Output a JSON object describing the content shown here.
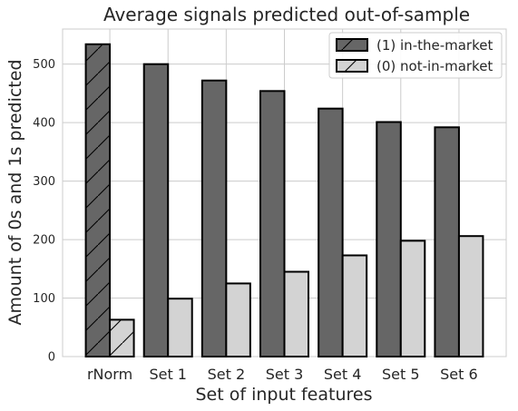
{
  "chart_data": {
    "type": "bar",
    "title": "Average signals predicted out-of-sample",
    "xlabel": "Set of input features",
    "ylabel": "Amount of 0s and 1s predicted",
    "categories": [
      "rNorm",
      "Set 1",
      "Set 2",
      "Set 3",
      "Set 4",
      "Set 5",
      "Set 6"
    ],
    "series": [
      {
        "name": "(1) in-the-market",
        "values": [
          534,
          500,
          472,
          454,
          424,
          401,
          392
        ],
        "color": "#666666"
      },
      {
        "name": "(0) not-in-market",
        "values": [
          63,
          99,
          125,
          145,
          173,
          198,
          206
        ],
        "color": "#d3d3d3"
      }
    ],
    "hatched_category": "rNorm",
    "ylim": [
      0,
      560
    ],
    "yticks": [
      0,
      100,
      200,
      300,
      400,
      500
    ],
    "grid": true,
    "legend_position": "top-right"
  }
}
